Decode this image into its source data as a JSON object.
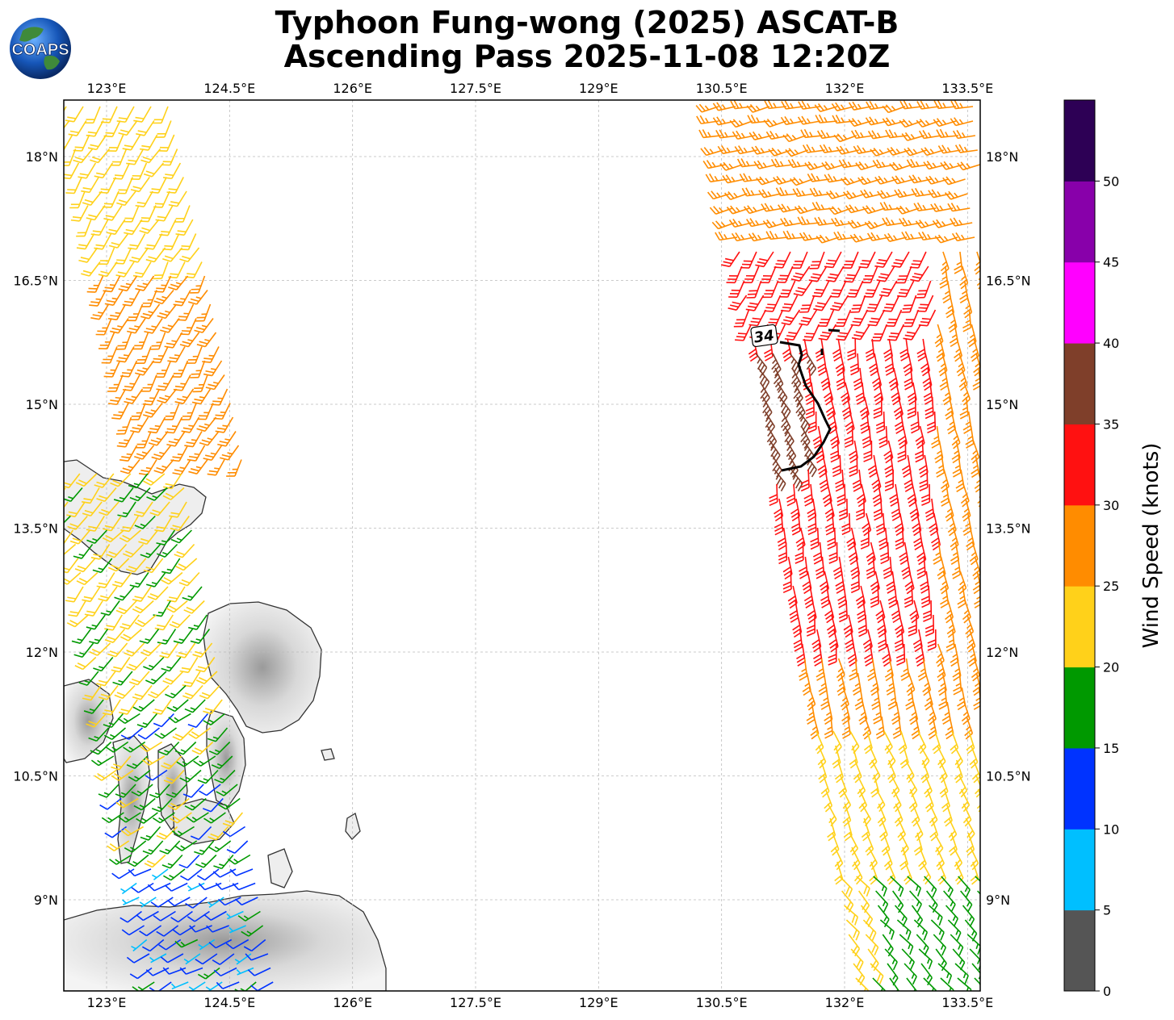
{
  "title": {
    "line1": "Typhoon Fung-wong (2025) ASCAT-B",
    "line2": "Ascending Pass 2025-11-08 12:20Z"
  },
  "logo": {
    "text": "COAPS",
    "icon": "globe-logo-icon"
  },
  "axes": {
    "lon_ticks": [
      "123°E",
      "124.5°E",
      "126°E",
      "127.5°E",
      "129°E",
      "130.5°E",
      "132°E",
      "133.5°E"
    ],
    "lat_ticks": [
      "18°N",
      "16.5°N",
      "15°N",
      "13.5°N",
      "12°N",
      "10.5°N",
      "9°N"
    ],
    "lon_range": [
      122.5,
      133.6
    ],
    "lat_range": [
      7.9,
      18.7
    ],
    "grid": true
  },
  "colorbar": {
    "label": "Wind Speed (knots)",
    "ticks": [
      "0",
      "5",
      "10",
      "15",
      "20",
      "25",
      "30",
      "35",
      "40",
      "45",
      "50"
    ],
    "colors": [
      "#555555",
      "#00bfff",
      "#0033ff",
      "#009900",
      "#ffd11a",
      "#ff8c00",
      "#ff1111",
      "#7f3f2a",
      "#ff00ff",
      "#8800aa",
      "#2d0055"
    ]
  },
  "contour": {
    "label": "34"
  },
  "chart_data": {
    "type": "wind-barb map",
    "swaths": [
      {
        "name": "west",
        "lon": [
          122.5,
          125.0
        ],
        "lat": [
          7.9,
          18.7
        ],
        "max_wind_kt": 35
      },
      {
        "name": "east",
        "lon": [
          130.4,
          133.6
        ],
        "lat": [
          7.9,
          18.7
        ],
        "max_wind_kt": 40
      }
    ],
    "contour_34kt": {
      "label": "34",
      "lat_range": [
        14.2,
        15.8
      ],
      "lon_range": [
        131.3,
        131.9
      ]
    }
  }
}
